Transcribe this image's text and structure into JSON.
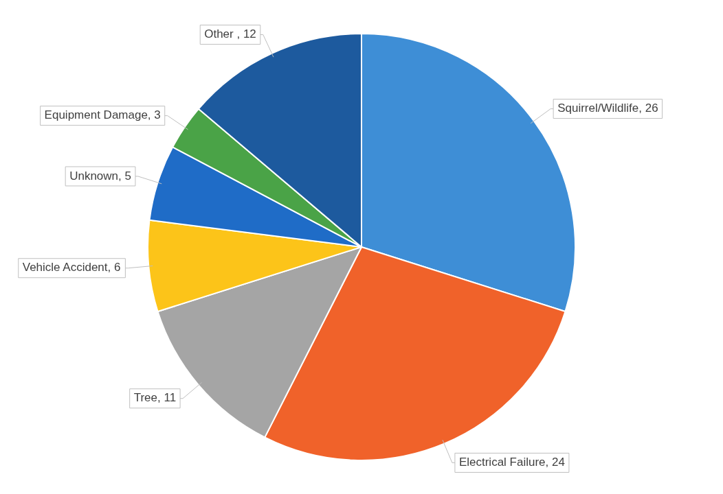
{
  "chart_data": {
    "type": "pie",
    "categories": [
      "Squirrel/Wildlife",
      "Electrical Failure",
      "Tree",
      "Vehicle Accident",
      "Unknown",
      "Equipment Damage",
      "Other "
    ],
    "values": [
      26,
      24,
      11,
      6,
      5,
      3,
      12
    ],
    "colors": [
      "#3e8ed6",
      "#f0622a",
      "#a5a5a5",
      "#fcc419",
      "#1f6cc7",
      "#4aa347",
      "#1d5a9e"
    ],
    "value_labels": [
      ", 26",
      ", 24",
      ", 11",
      ", 6",
      ", 5",
      ", 3",
      ", 12"
    ],
    "legend": false
  }
}
